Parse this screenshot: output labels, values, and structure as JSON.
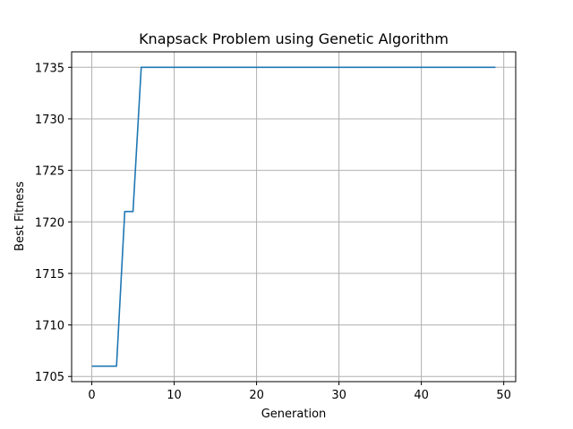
{
  "chart_data": {
    "type": "line",
    "title": "Knapsack Problem using Genetic Algorithm",
    "xlabel": "Generation",
    "ylabel": "Best Fitness",
    "xlim": [
      -2.45,
      51.45
    ],
    "ylim": [
      1704.5,
      1736.5
    ],
    "xticks": [
      0,
      10,
      20,
      30,
      40,
      50
    ],
    "yticks": [
      1705,
      1710,
      1715,
      1720,
      1725,
      1730,
      1735
    ],
    "grid": true,
    "series": [
      {
        "color": "#1f77b4",
        "x": [
          0,
          1,
          2,
          3,
          4,
          5,
          6,
          7,
          8,
          9,
          10,
          11,
          12,
          13,
          14,
          15,
          16,
          17,
          18,
          19,
          20,
          21,
          22,
          23,
          24,
          25,
          26,
          27,
          28,
          29,
          30,
          31,
          32,
          33,
          34,
          35,
          36,
          37,
          38,
          39,
          40,
          41,
          42,
          43,
          44,
          45,
          46,
          47,
          48,
          49
        ],
        "y": [
          1706,
          1706,
          1706,
          1706,
          1721,
          1721,
          1735,
          1735,
          1735,
          1735,
          1735,
          1735,
          1735,
          1735,
          1735,
          1735,
          1735,
          1735,
          1735,
          1735,
          1735,
          1735,
          1735,
          1735,
          1735,
          1735,
          1735,
          1735,
          1735,
          1735,
          1735,
          1735,
          1735,
          1735,
          1735,
          1735,
          1735,
          1735,
          1735,
          1735,
          1735,
          1735,
          1735,
          1735,
          1735,
          1735,
          1735,
          1735,
          1735,
          1735
        ]
      }
    ]
  }
}
